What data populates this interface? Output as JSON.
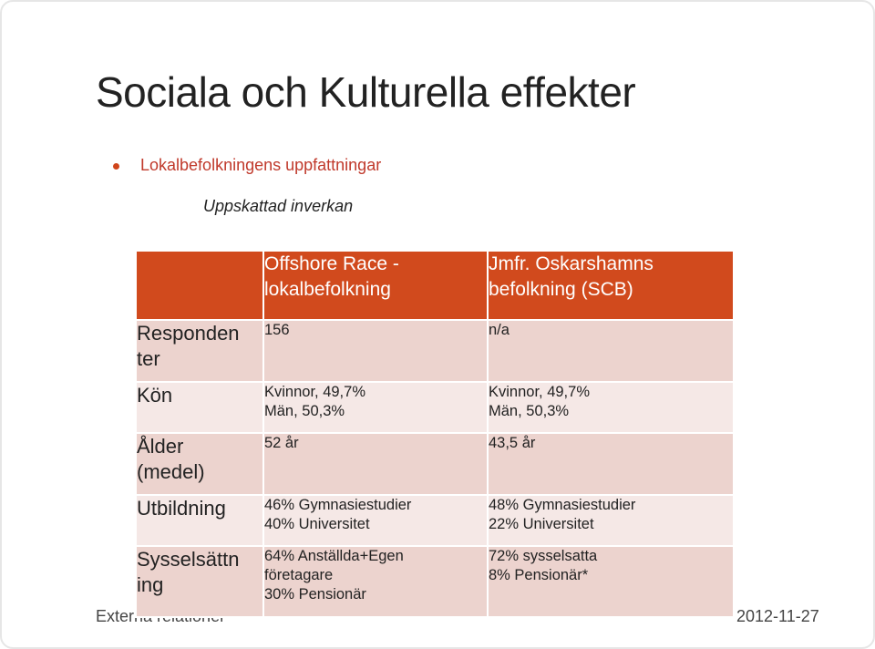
{
  "slide": {
    "title": "Sociala och Kulturella effekter",
    "bullet": "Lokalbefolkningens uppfattningar",
    "subheading": "Uppskattad inverkan",
    "footer_left": "Externa relationer",
    "footer_right": "2012-11-27"
  },
  "table": {
    "headers": [
      {
        "lines": []
      },
      {
        "lines": [
          "Offshore Race -",
          "lokalbefolkning"
        ]
      },
      {
        "lines": [
          "Jmfr. Oskarshamns",
          "befolkning (SCB)"
        ]
      }
    ],
    "rows": [
      {
        "label": [
          "Responden",
          "ter"
        ],
        "offshore": [
          "156"
        ],
        "scb": [
          "n/a"
        ]
      },
      {
        "label": [
          "Kön"
        ],
        "offshore": [
          "Kvinnor, 49,7%",
          "Män, 50,3%"
        ],
        "scb": [
          "Kvinnor, 49,7%",
          "Män, 50,3%"
        ]
      },
      {
        "label": [
          "Ålder",
          "(medel)"
        ],
        "offshore": [
          "52 år"
        ],
        "scb": [
          "43,5 år"
        ]
      },
      {
        "label": [
          "Utbildning"
        ],
        "offshore": [
          "46% Gymnasiestudier",
          "40% Universitet"
        ],
        "scb": [
          "48% Gymnasiestudier",
          "22% Universitet"
        ]
      },
      {
        "label": [
          "Sysselsättn",
          "ing"
        ],
        "offshore": [
          "64% Anställda+Egen",
          "företagare",
          "30% Pensionär"
        ],
        "scb": [
          "72% sysselsatta",
          "8% Pensionär*"
        ]
      }
    ],
    "colors": {
      "header_bg": "#d14a1d",
      "row_odd": "#ecd3ce",
      "row_even": "#f5e8e6"
    }
  }
}
